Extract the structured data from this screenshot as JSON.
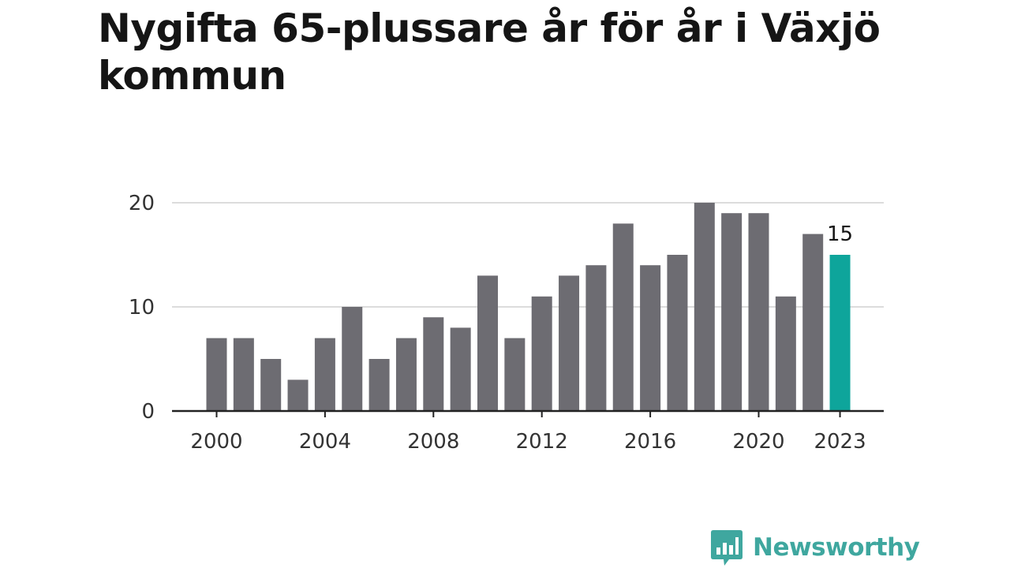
{
  "title": "Nygifta 65-plussare år för år i Växjö kommun",
  "chart_data": {
    "type": "bar",
    "title": "Nygifta 65-plussare år för år i Växjö kommun",
    "xlabel": "",
    "ylabel": "",
    "categories": [
      "2000",
      "2001",
      "2002",
      "2003",
      "2004",
      "2005",
      "2006",
      "2007",
      "2008",
      "2009",
      "2010",
      "2011",
      "2012",
      "2013",
      "2014",
      "2015",
      "2016",
      "2017",
      "2018",
      "2019",
      "2020",
      "2021",
      "2022",
      "2023"
    ],
    "values": [
      7,
      7,
      5,
      3,
      7,
      10,
      5,
      7,
      9,
      8,
      13,
      7,
      11,
      13,
      14,
      18,
      14,
      15,
      20,
      19,
      19,
      11,
      17,
      15
    ],
    "ylim": [
      0,
      20
    ],
    "y_ticks": [
      0,
      10,
      20
    ],
    "x_tick_labels": [
      "2000",
      "2004",
      "2008",
      "2012",
      "2016",
      "2020",
      "2023"
    ],
    "highlight_category": "2023",
    "highlight_label": "15",
    "grid": true,
    "colors": {
      "bar": "#6d6c72",
      "highlight": "#0ea59b",
      "grid": "#dcdcdc",
      "axis": "#222222"
    }
  },
  "brand": {
    "name": "Newsworthy",
    "color": "#3fa79f",
    "icon": "bar-chart-speech-bubble-icon"
  }
}
